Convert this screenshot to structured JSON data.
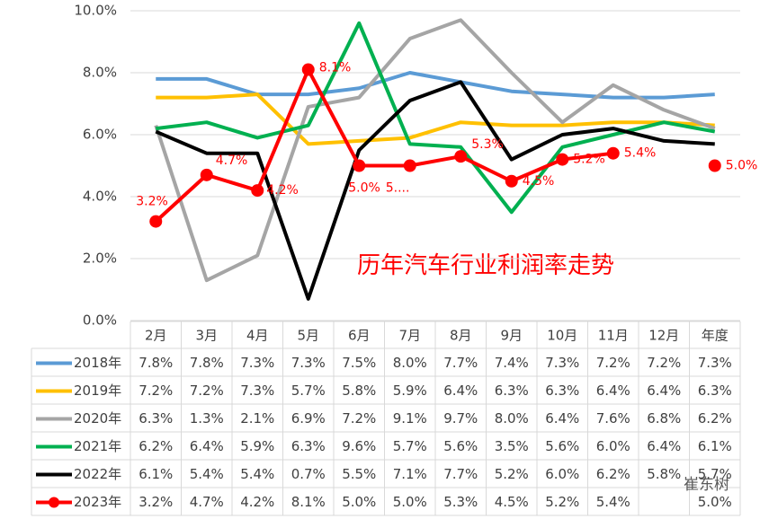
{
  "chart_data": {
    "type": "line",
    "title": "历年汽车行业利润率走势",
    "categories": [
      "2月",
      "3月",
      "4月",
      "5月",
      "6月",
      "7月",
      "8月",
      "9月",
      "10月",
      "11月",
      "12月",
      "年度"
    ],
    "ylim": [
      0,
      10
    ],
    "yticks": [
      {
        "value": 0,
        "label": "0.0%"
      },
      {
        "value": 2,
        "label": "2.0%"
      },
      {
        "value": 4,
        "label": "4.0%"
      },
      {
        "value": 6,
        "label": "6.0%"
      },
      {
        "value": 8,
        "label": "8.0%"
      },
      {
        "value": 10,
        "label": "10.0%"
      }
    ],
    "grid": true,
    "watermark": "崔东树",
    "series": [
      {
        "name": "2018年",
        "color": "#5b9bd5",
        "values": [
          7.8,
          7.8,
          7.3,
          7.3,
          7.5,
          8.0,
          7.7,
          7.4,
          7.3,
          7.2,
          7.2,
          7.3
        ],
        "value_labels": [
          "7.8%",
          "7.8%",
          "7.3%",
          "7.3%",
          "7.5%",
          "8.0%",
          "7.7%",
          "7.4%",
          "7.3%",
          "7.2%",
          "7.2%",
          "7.3%"
        ]
      },
      {
        "name": "2019年",
        "color": "#ffc000",
        "values": [
          7.2,
          7.2,
          7.3,
          5.7,
          5.8,
          5.9,
          6.4,
          6.3,
          6.3,
          6.4,
          6.4,
          6.3
        ],
        "value_labels": [
          "7.2%",
          "7.2%",
          "7.3%",
          "5.7%",
          "5.8%",
          "5.9%",
          "6.4%",
          "6.3%",
          "6.3%",
          "6.4%",
          "6.4%",
          "6.3%"
        ]
      },
      {
        "name": "2020年",
        "color": "#a5a5a5",
        "values": [
          6.3,
          1.3,
          2.1,
          6.9,
          7.2,
          9.1,
          9.7,
          8.0,
          6.4,
          7.6,
          6.8,
          6.2
        ],
        "value_labels": [
          "6.3%",
          "1.3%",
          "2.1%",
          "6.9%",
          "7.2%",
          "9.1%",
          "9.7%",
          "8.0%",
          "6.4%",
          "7.6%",
          "6.8%",
          "6.2%"
        ]
      },
      {
        "name": "2021年",
        "color": "#00b050",
        "values": [
          6.2,
          6.4,
          5.9,
          6.3,
          9.6,
          5.7,
          5.6,
          3.5,
          5.6,
          6.0,
          6.4,
          6.1
        ],
        "value_labels": [
          "6.2%",
          "6.4%",
          "5.9%",
          "6.3%",
          "9.6%",
          "5.7%",
          "5.6%",
          "3.5%",
          "5.6%",
          "6.0%",
          "6.4%",
          "6.1%"
        ]
      },
      {
        "name": "2022年",
        "color": "#000000",
        "values": [
          6.1,
          5.4,
          5.4,
          0.7,
          5.5,
          7.1,
          7.7,
          5.2,
          6.0,
          6.2,
          5.8,
          5.7
        ],
        "value_labels": [
          "6.1%",
          "5.4%",
          "5.4%",
          "0.7%",
          "5.5%",
          "7.1%",
          "7.7%",
          "5.2%",
          "6.0%",
          "6.2%",
          "5.8%",
          "5.7%"
        ]
      },
      {
        "name": "2023年",
        "color": "#ff0000",
        "values": [
          3.2,
          4.7,
          4.2,
          8.1,
          5.0,
          5.0,
          5.3,
          4.5,
          5.2,
          5.4,
          null,
          5.0
        ],
        "value_labels": [
          "3.2%",
          "4.7%",
          "4.2%",
          "8.1%",
          "5.0%",
          "5.0%",
          "5.3%",
          "4.5%",
          "5.2%",
          "5.4%",
          null,
          "5.0%"
        ],
        "data_labels": [
          "3.2%",
          "4.7%",
          "4.2%",
          "8.1%",
          "5.0%",
          "5....",
          "5.3%",
          "4.5%",
          "5.2%",
          "5.4%",
          null,
          "5.0%"
        ],
        "markers": true
      }
    ]
  }
}
